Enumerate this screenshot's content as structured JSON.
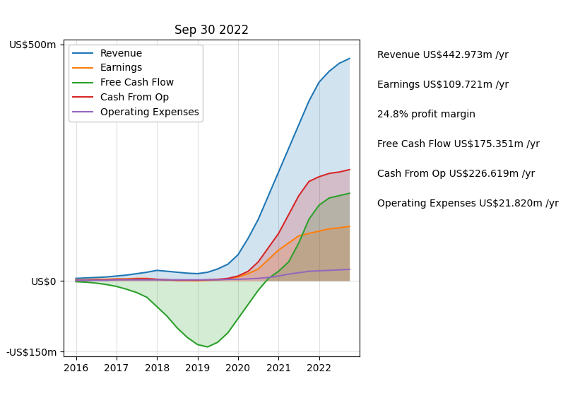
{
  "chart_data": {
    "type": "area",
    "title": "Sep 30 2022",
    "x": [
      2016.0,
      2016.25,
      2016.5,
      2016.75,
      2017.0,
      2017.25,
      2017.5,
      2017.75,
      2018.0,
      2018.25,
      2018.5,
      2018.75,
      2019.0,
      2019.25,
      2019.5,
      2019.75,
      2020.0,
      2020.25,
      2020.5,
      2020.75,
      2021.0,
      2021.25,
      2021.5,
      2021.75,
      2022.0,
      2022.25,
      2022.5,
      2022.75
    ],
    "series": [
      {
        "name": "Revenue",
        "type": "area",
        "values": [
          5,
          6,
          7,
          8,
          10,
          12,
          15,
          18,
          22,
          20,
          18,
          16,
          15,
          18,
          25,
          35,
          55,
          90,
          130,
          180,
          230,
          280,
          330,
          380,
          420,
          443,
          460,
          470
        ]
      },
      {
        "name": "Earnings",
        "type": "area",
        "values": [
          2,
          2,
          3,
          3,
          4,
          4,
          5,
          5,
          3,
          2,
          1,
          1,
          0,
          1,
          2,
          4,
          8,
          15,
          25,
          45,
          65,
          80,
          95,
          100,
          105,
          110,
          112,
          115
        ]
      },
      {
        "name": "Free Cash Flow",
        "type": "area",
        "values": [
          -2,
          -3,
          -5,
          -8,
          -12,
          -18,
          -25,
          -35,
          -55,
          -75,
          -100,
          -120,
          -135,
          -140,
          -130,
          -110,
          -80,
          -50,
          -20,
          5,
          20,
          40,
          80,
          130,
          160,
          175,
          180,
          185
        ]
      },
      {
        "name": "Cash From Op",
        "type": "area",
        "values": [
          1,
          1,
          2,
          2,
          3,
          3,
          4,
          4,
          3,
          2,
          1,
          1,
          1,
          2,
          3,
          5,
          10,
          20,
          40,
          70,
          100,
          140,
          180,
          210,
          220,
          227,
          230,
          235
        ]
      },
      {
        "name": "Operating Expenses",
        "type": "line",
        "values": [
          1,
          1,
          1,
          1,
          2,
          2,
          2,
          2,
          2,
          2,
          2,
          2,
          2,
          2,
          2,
          3,
          3,
          4,
          5,
          7,
          10,
          14,
          17,
          20,
          21,
          22,
          23,
          24
        ]
      }
    ],
    "xlim": [
      2015.7,
      2023.0
    ],
    "xticks": [
      2016,
      2017,
      2018,
      2019,
      2020,
      2021,
      2022
    ],
    "ylim": [
      -160,
      510
    ],
    "yticks": [
      {
        "value": -150,
        "label": "-US$150m"
      },
      {
        "value": 0,
        "label": "US$0"
      },
      {
        "value": 500,
        "label": "US$500m"
      }
    ],
    "grid": true,
    "legend": "upper left",
    "annotations": [
      "Revenue US$442.973m /yr",
      "Earnings US$109.721m /yr",
      "24.8% profit margin",
      "Free Cash Flow US$175.351m /yr",
      "Cash From Op US$226.619m /yr",
      "Operating Expenses US$21.820m /yr"
    ]
  }
}
